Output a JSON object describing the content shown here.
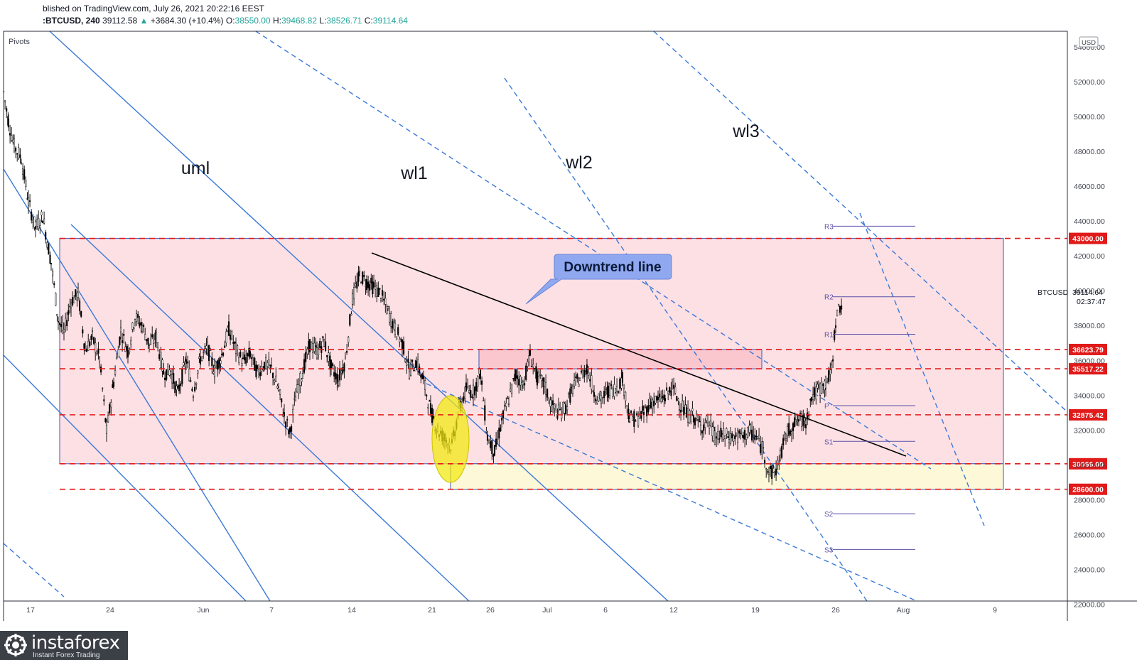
{
  "header": {
    "published": "blished on TradingView.com, July 26, 2021 20:22:16 EEST",
    "symbol": ":BTCUSD, 240",
    "last": "39112.58",
    "change": "+3684.30 (+10.4%)",
    "open_label": "O:",
    "open": "38550.00",
    "high_label": "H:",
    "high": "39468.82",
    "low_label": "L:",
    "low": "38526.71",
    "close_label": "C:",
    "close": "39114.64"
  },
  "indicator_label": "Pivots",
  "colors": {
    "up": "#26a69a",
    "candle": "#000000",
    "zone_fill": "#fde0e4",
    "lower_zone_fill": "#fdf8d8",
    "level_line": "#e01919",
    "pitchfork": "#3b78d8",
    "pivot": "#5b4fa8",
    "callout": "#8fa8ef"
  },
  "chart_data": {
    "type": "candlestick",
    "symbol": "BTCUSD",
    "timeframe": "240",
    "currency": "USD",
    "ylim": [
      21000,
      54500
    ],
    "y_ticks": [
      22000,
      24000,
      26000,
      28000,
      30000,
      32000,
      34000,
      36000,
      38000,
      40000,
      42000,
      44000,
      46000,
      48000,
      50000,
      52000,
      54000
    ],
    "x_ticks": [
      "17",
      "24",
      "Jun",
      "7",
      "14",
      "21",
      "26",
      "Jul",
      "6",
      "12",
      "19",
      "26",
      "Aug",
      "9"
    ],
    "price_levels": [
      43000.0,
      36623.79,
      35517.22,
      32875.42,
      30066.0,
      28600.0
    ],
    "current_price": {
      "label": "BTCUSD",
      "value": "39114.64",
      "countdown": "02:37:47"
    },
    "pivots": [
      {
        "name": "R3",
        "value": 43700
      },
      {
        "name": "R2",
        "value": 39650
      },
      {
        "name": "R1",
        "value": 37500
      },
      {
        "name": "P",
        "value": 33400
      },
      {
        "name": "S1",
        "value": 31350
      },
      {
        "name": "S2",
        "value": 27200
      },
      {
        "name": "S3",
        "value": 25150
      }
    ],
    "annotations": {
      "downtrend_label": "Downtrend line",
      "lines": [
        "uml",
        "wl1",
        "wl2",
        "wl3"
      ]
    },
    "price_path": [
      [
        5,
        51400
      ],
      [
        12,
        49700
      ],
      [
        20,
        48300
      ],
      [
        30,
        47600
      ],
      [
        40,
        45100
      ],
      [
        50,
        43600
      ],
      [
        60,
        44300
      ],
      [
        72,
        41600
      ],
      [
        82,
        38300
      ],
      [
        90,
        37600
      ],
      [
        100,
        39400
      ],
      [
        110,
        39800
      ],
      [
        120,
        36600
      ],
      [
        130,
        37300
      ],
      [
        140,
        36100
      ],
      [
        150,
        31900
      ],
      [
        160,
        34800
      ],
      [
        170,
        37700
      ],
      [
        180,
        36500
      ],
      [
        190,
        38500
      ],
      [
        200,
        38000
      ],
      [
        210,
        36900
      ],
      [
        220,
        37300
      ],
      [
        230,
        35300
      ],
      [
        240,
        35400
      ],
      [
        250,
        34100
      ],
      [
        262,
        36000
      ],
      [
        272,
        34200
      ],
      [
        282,
        36100
      ],
      [
        292,
        36700
      ],
      [
        302,
        35400
      ],
      [
        312,
        36300
      ],
      [
        322,
        37800
      ],
      [
        332,
        36600
      ],
      [
        342,
        35900
      ],
      [
        352,
        36400
      ],
      [
        362,
        35300
      ],
      [
        372,
        35800
      ],
      [
        382,
        35500
      ],
      [
        392,
        34300
      ],
      [
        400,
        32800
      ],
      [
        408,
        31800
      ],
      [
        416,
        33900
      ],
      [
        426,
        35400
      ],
      [
        436,
        36900
      ],
      [
        446,
        36500
      ],
      [
        456,
        37100
      ],
      [
        466,
        35600
      ],
      [
        476,
        34900
      ],
      [
        486,
        36000
      ],
      [
        496,
        39500
      ],
      [
        506,
        40900
      ],
      [
        516,
        40500
      ],
      [
        526,
        40200
      ],
      [
        536,
        39800
      ],
      [
        546,
        38800
      ],
      [
        556,
        37800
      ],
      [
        566,
        37000
      ],
      [
        576,
        35400
      ],
      [
        586,
        35900
      ],
      [
        596,
        34800
      ],
      [
        606,
        33100
      ],
      [
        616,
        32000
      ],
      [
        626,
        31500
      ],
      [
        636,
        31100
      ],
      [
        646,
        33200
      ],
      [
        656,
        34300
      ],
      [
        666,
        34200
      ],
      [
        676,
        35300
      ],
      [
        686,
        31600
      ],
      [
        696,
        30700
      ],
      [
        706,
        32500
      ],
      [
        716,
        33800
      ],
      [
        726,
        35200
      ],
      [
        736,
        34600
      ],
      [
        746,
        36300
      ],
      [
        756,
        35000
      ],
      [
        766,
        34600
      ],
      [
        776,
        33400
      ],
      [
        786,
        33000
      ],
      [
        796,
        33300
      ],
      [
        806,
        34400
      ],
      [
        816,
        35000
      ],
      [
        826,
        35600
      ],
      [
        836,
        34200
      ],
      [
        846,
        33700
      ],
      [
        856,
        34300
      ],
      [
        866,
        34400
      ],
      [
        876,
        34900
      ],
      [
        886,
        32700
      ],
      [
        896,
        32600
      ],
      [
        906,
        33000
      ],
      [
        916,
        33600
      ],
      [
        926,
        33700
      ],
      [
        936,
        33900
      ],
      [
        946,
        34500
      ],
      [
        956,
        33600
      ],
      [
        966,
        32900
      ],
      [
        976,
        32800
      ],
      [
        986,
        32200
      ],
      [
        996,
        32500
      ],
      [
        1006,
        31600
      ],
      [
        1016,
        31700
      ],
      [
        1026,
        31600
      ],
      [
        1036,
        31600
      ],
      [
        1046,
        31700
      ],
      [
        1056,
        31900
      ],
      [
        1066,
        31500
      ],
      [
        1074,
        30800
      ],
      [
        1082,
        29600
      ],
      [
        1090,
        29500
      ],
      [
        1098,
        30500
      ],
      [
        1106,
        31700
      ],
      [
        1114,
        32200
      ],
      [
        1124,
        32600
      ],
      [
        1134,
        32500
      ],
      [
        1142,
        33900
      ],
      [
        1152,
        34300
      ],
      [
        1162,
        34700
      ],
      [
        1170,
        35300
      ],
      [
        1176,
        38300
      ],
      [
        1182,
        39100
      ],
      [
        1186,
        39200
      ]
    ]
  },
  "logo": {
    "name": "instaforex",
    "tagline": "Instant Forex Trading"
  }
}
